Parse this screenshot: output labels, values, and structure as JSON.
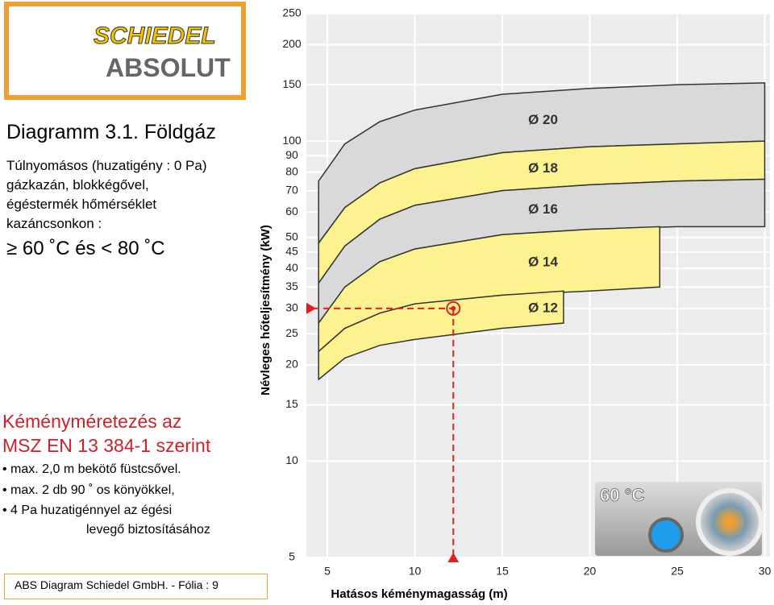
{
  "logo": {
    "brand": "SCHIEDEL",
    "product": "ABSOLUT"
  },
  "slide": {
    "title": "Diagramm 3.1. Földgáz",
    "description": [
      "Túlnyomásos (huzatigény : 0 Pa)",
      "gázkazán, blokkégővel,",
      "égéstermék hőmérséklet",
      "kazáncsonkon :"
    ],
    "temperature_range": "≥ 60 ˚C és < 80 ˚C",
    "standard": [
      "Kéményméretezés az",
      "MSZ EN 13 384-1 szerint"
    ],
    "bullets": [
      "max. 2,0 m bekötő füstcsővel.",
      "max. 2 db 90 ˚ os könyökkel,",
      "4 Pa huzatigénnyel az égési"
    ],
    "bullet_continuation": "levegő biztosításához",
    "footer": "ABS Diagram  Schiedel GmbH. - Fólia : 9",
    "inset_label": "60 °C"
  },
  "chart_data": {
    "type": "band",
    "x_label": "Hatásos kéménymagasság (m)",
    "y_label": "Névleges hőteljesítmény (kW)",
    "xlim": [
      3.8,
      30.3
    ],
    "ylim": [
      5,
      250
    ],
    "log_scale": true,
    "grid": true,
    "xticks": [
      5,
      10,
      15,
      20,
      25,
      30
    ],
    "yticks": [
      5,
      10,
      15,
      20,
      25,
      30,
      35,
      40,
      45,
      50,
      60,
      70,
      80,
      90,
      100,
      150,
      200,
      250
    ],
    "series": [
      {
        "name": "Ø 20",
        "color": "#d9d9d9",
        "x": [
          4.5,
          6,
          8,
          10,
          15,
          20,
          25,
          30
        ],
        "lower": [
          48,
          62,
          74,
          82,
          92,
          96,
          98,
          100
        ],
        "upper": [
          75,
          98,
          115,
          125,
          140,
          146,
          150,
          152
        ]
      },
      {
        "name": "Ø 18",
        "color": "#fdf290",
        "x": [
          4.5,
          6,
          8,
          10,
          15,
          20,
          25,
          30
        ],
        "lower": [
          36,
          47,
          57,
          63,
          70,
          73,
          75,
          76
        ],
        "upper": [
          48,
          62,
          74,
          82,
          92,
          96,
          98,
          100
        ]
      },
      {
        "name": "Ø 16",
        "color": "#d9d9d9",
        "x": [
          4.5,
          6,
          8,
          10,
          15,
          20,
          25,
          30
        ],
        "lower": [
          27,
          35,
          42,
          46,
          51,
          53,
          54,
          54
        ],
        "upper": [
          36,
          47,
          57,
          63,
          70,
          73,
          75,
          76
        ]
      },
      {
        "name": "Ø 14",
        "color": "#fdf290",
        "x": [
          4.5,
          6,
          8,
          10,
          15,
          20,
          24
        ],
        "lower": [
          22,
          26,
          29,
          31,
          33,
          34,
          35
        ],
        "upper": [
          27,
          35,
          42,
          46,
          51,
          53,
          54
        ]
      },
      {
        "name": "Ø 12",
        "color": "#fdf290",
        "x": [
          4.5,
          6,
          8,
          10,
          15,
          18.5
        ],
        "lower": [
          18,
          21,
          23,
          24,
          26,
          27
        ],
        "upper": [
          22,
          26,
          29,
          31,
          33,
          34
        ]
      }
    ],
    "marker": {
      "x": 12.2,
      "y": 30,
      "color": "#e02020"
    }
  }
}
